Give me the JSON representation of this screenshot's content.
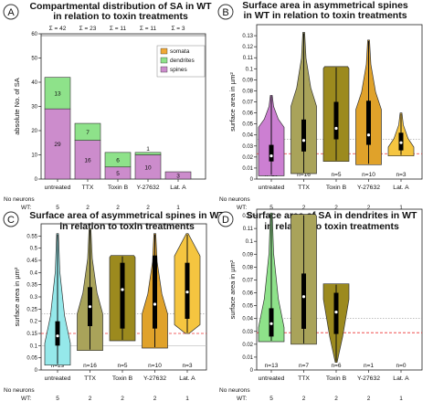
{
  "colors": {
    "somata": "#f0a835",
    "dendrites": "#8ee28a",
    "spines": "#cc8ccc",
    "untreated_violin_B": "#cc7fd2",
    "untreated_violin_C": "#95e8ea",
    "untreated_violin_D": "#8ee28a",
    "TTX": "#a9a35a",
    "Toxin B": "#9c8a1e",
    "Y-27632": "#e0a22a",
    "Lat. A": "#f5c540",
    "dashed_line": "#ee3333",
    "dotted_line": "#999999"
  },
  "footer": {
    "no_neurons_label": "No neurons",
    "wt_label": "WT:"
  },
  "chart_data": [
    {
      "panel": "A",
      "type": "bar",
      "stacked": true,
      "title": "Compartmental distribution of SA in WT in relation to toxin treatments",
      "title_lines": [
        "Compartmental distribution of SA in WT",
        "in relation to toxin treatments"
      ],
      "ylabel": "absolute No. of SA",
      "xlabel": "",
      "ylim": [
        0,
        60
      ],
      "yticks": [
        0,
        10,
        20,
        30,
        40,
        50,
        60
      ],
      "categories": [
        "untreated",
        "TTX",
        "Toxin B",
        "Y-27632",
        "Lat. A"
      ],
      "sums": [
        "Σ = 42",
        "Σ = 23",
        "Σ = 11",
        "Σ = 11",
        "Σ = 3"
      ],
      "series": [
        {
          "name": "spines",
          "values": [
            29,
            16,
            5,
            10,
            3
          ]
        },
        {
          "name": "dendrites",
          "values": [
            13,
            7,
            6,
            1,
            0
          ]
        },
        {
          "name": "somata",
          "values": [
            0,
            0,
            0,
            0,
            0
          ]
        }
      ],
      "value_labels": {
        "spines": [
          "29",
          "16",
          "5",
          "10",
          "3"
        ],
        "dendrites": [
          "13",
          "7",
          "6",
          "1",
          ""
        ]
      },
      "legend": [
        "somata",
        "dendrites",
        "spines"
      ],
      "legend_position": "top-right",
      "no_neurons": [
        "5",
        "2",
        "2",
        "2",
        "1"
      ]
    },
    {
      "panel": "B",
      "type": "violin",
      "title": "Surface area in asymmetrical spines in WT in relation to toxin treatments",
      "title_lines": [
        "Surface area in asymmetrical spines",
        "in WT in relation to toxin treatments"
      ],
      "ylabel": "surface area in µm²",
      "ylim": [
        0,
        0.14
      ],
      "yticks": [
        "0",
        "0.01",
        "0.02",
        "0.03",
        "0.04",
        "0.05",
        "0.06",
        "0.07",
        "0.08",
        "0.09",
        "0.1",
        "0.11",
        "0.12",
        "0.13"
      ],
      "categories": [
        "untreated",
        "TTX",
        "Toxin B",
        "Y-27632",
        "Lat. A"
      ],
      "n_labels": [
        "n=29",
        "n=16",
        "n=5",
        "n=10",
        "n=3"
      ],
      "no_neurons": [
        "5",
        "2",
        "2",
        "2",
        "1"
      ],
      "dotted_line": 0.036,
      "dashed_line": 0.023,
      "series": [
        {
          "name": "untreated",
          "min": 0.003,
          "q1": 0.016,
          "median": 0.021,
          "q3": 0.031,
          "max": 0.076,
          "tip": 0.047,
          "shape": "bottom"
        },
        {
          "name": "TTX",
          "min": 0.005,
          "q1": 0.025,
          "median": 0.035,
          "q3": 0.054,
          "max": 0.133,
          "tip": 0.066,
          "shape": "bottom"
        },
        {
          "name": "Toxin B",
          "min": 0.016,
          "q1": 0.036,
          "median": 0.046,
          "q3": 0.07,
          "max": 0.102,
          "tip": 0.0,
          "shape": "box"
        },
        {
          "name": "Y-27632",
          "min": 0.013,
          "q1": 0.031,
          "median": 0.04,
          "q3": 0.071,
          "max": 0.126,
          "tip": 0.063,
          "shape": "bottom"
        },
        {
          "name": "Lat. A",
          "min": 0.021,
          "q1": 0.026,
          "median": 0.033,
          "q3": 0.042,
          "max": 0.06,
          "tip": 0.029,
          "shape": "bottom"
        }
      ]
    },
    {
      "panel": "C",
      "type": "violin",
      "title": "Surface area of asymmetrical spines in WT in relation to toxin treatments",
      "title_lines": [
        "Surface area of asymmetrical spines in WT",
        "in relation to toxin treatments"
      ],
      "ylabel": "surface area in µm²",
      "ylim": [
        0,
        0.6
      ],
      "yticks": [
        "0",
        "0.05",
        "0.1",
        "0.15",
        "0.2",
        "0.25",
        "0.3",
        "0.35",
        "0.4",
        "0.45",
        "0.5",
        "0.55"
      ],
      "categories": [
        "untreated",
        "TTX",
        "Toxin B",
        "Y-27632",
        "Lat. A"
      ],
      "n_labels": [
        "n=29",
        "n=16",
        "n=5",
        "n=10",
        "n=3"
      ],
      "no_neurons": [
        "5",
        "2",
        "2",
        "2",
        "1"
      ],
      "dotted_line": 0.23,
      "dashed_line": 0.15,
      "extra_gray_line": 0.1,
      "series": [
        {
          "name": "untreated",
          "min": 0.02,
          "q1": 0.1,
          "median": 0.14,
          "q3": 0.2,
          "max": 0.56,
          "tip": 0.11,
          "shape": "bottom"
        },
        {
          "name": "TTX",
          "min": 0.08,
          "q1": 0.18,
          "median": 0.26,
          "q3": 0.34,
          "max": 0.58,
          "tip": 0.23,
          "shape": "bottom"
        },
        {
          "name": "Toxin B",
          "min": 0.12,
          "q1": 0.17,
          "median": 0.33,
          "q3": 0.44,
          "max": 0.47,
          "tip": 0.0,
          "shape": "box"
        },
        {
          "name": "Y-27632",
          "min": 0.09,
          "q1": 0.17,
          "median": 0.27,
          "q3": 0.47,
          "max": 0.56,
          "tip": 0.23,
          "shape": "bottom"
        },
        {
          "name": "Lat. A",
          "min": 0.15,
          "q1": 0.21,
          "median": 0.32,
          "q3": 0.44,
          "max": 0.56,
          "tip": 0.33,
          "shape": "middle"
        }
      ]
    },
    {
      "panel": "D",
      "type": "violin",
      "title": "Surface area of SA in dendrites in WT in relation to toxin treatments",
      "title_lines": [
        "Surface area of SA in dendrites in WT",
        "in relation to toxin treatments"
      ],
      "ylabel": "surface area in µm²",
      "ylim": [
        0,
        0.125
      ],
      "yticks": [
        "0",
        "0.01",
        "0.02",
        "0.03",
        "0.04",
        "0.05",
        "0.06",
        "0.07",
        "0.08",
        "0.09",
        "0.1",
        "0.11",
        "0.12"
      ],
      "categories": [
        "untreated",
        "TTX",
        "Toxin B",
        "Y-27632",
        "Lat. A"
      ],
      "n_labels": [
        "n=13",
        "n=7",
        "n=6",
        "n=1",
        "n=0"
      ],
      "no_neurons": [
        "5",
        "2",
        "2",
        "2",
        "1"
      ],
      "dotted_line": 0.04,
      "dashed_line": 0.029,
      "series": [
        {
          "name": "untreated",
          "min": 0.022,
          "q1": 0.026,
          "median": 0.036,
          "q3": 0.048,
          "max": 0.122,
          "tip": 0.033,
          "shape": "bottom"
        },
        {
          "name": "TTX",
          "min": 0.02,
          "q1": 0.032,
          "median": 0.057,
          "q3": 0.075,
          "max": 0.121,
          "tip": 0.0,
          "shape": "box"
        },
        {
          "name": "Toxin B",
          "min": 0.006,
          "q1": 0.028,
          "median": 0.045,
          "q3": 0.06,
          "max": 0.067,
          "tip": 0.055,
          "shape": "top"
        },
        {
          "name": "Y-27632",
          "values": []
        },
        {
          "name": "Lat. A",
          "values": []
        }
      ]
    }
  ]
}
